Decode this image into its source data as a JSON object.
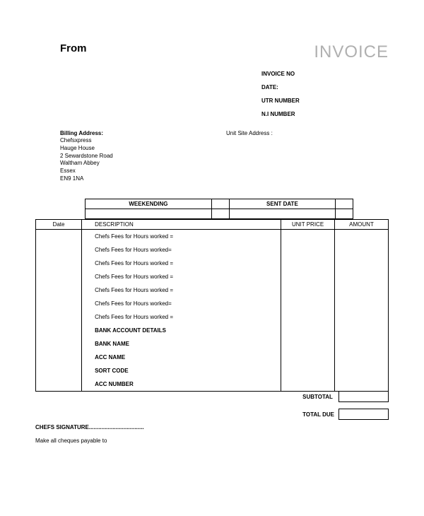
{
  "header": {
    "from_label": "From",
    "invoice_title": "INVOICE"
  },
  "meta": {
    "invoice_no_label": "INVOICE NO",
    "date_label": "DATE:",
    "utr_label": "UTR NUMBER",
    "ni_label": "N.I NUMBER"
  },
  "billing": {
    "title": "Billing Address:",
    "lines": [
      "Chefsxpress",
      "Hauge House",
      "2 Sewardstone Road",
      "Waltham Abbey",
      "Essex",
      "EN9 1NA"
    ]
  },
  "site": {
    "title": "Unit Site Address :"
  },
  "week": {
    "weekending": "WEEKENDING",
    "sent_date": "SENT DATE"
  },
  "table": {
    "headers": {
      "date": "Date",
      "desc": "DESCRIPTION",
      "price": "UNIT PRICE",
      "amount": "AMOUNT"
    },
    "rows": [
      {
        "desc": "Chefs Fees  for Hours worked =",
        "bold": false
      },
      {
        "desc": "Chefs Fees  for Hours worked=",
        "bold": false
      },
      {
        "desc": "Chefs Fees  for Hours worked =",
        "bold": false
      },
      {
        "desc": "Chefs Fees  for Hours worked =",
        "bold": false
      },
      {
        "desc": "Chefs Fees  for Hours worked =",
        "bold": false
      },
      {
        "desc": "Chefs Fees  for Hours worked=",
        "bold": false
      },
      {
        "desc": "Chefs Fees  for Hours worked =",
        "bold": false
      },
      {
        "desc": "BANK ACCOUNT DETAILS",
        "bold": true
      },
      {
        "desc": "BANK  NAME",
        "bold": true
      },
      {
        "desc": "ACC NAME",
        "bold": true
      },
      {
        "desc": "SORT CODE",
        "bold": true
      },
      {
        "desc": "ACC NUMBER",
        "bold": true
      }
    ]
  },
  "totals": {
    "subtotal_label": "SUBTOTAL",
    "total_due_label": "TOTAL DUE"
  },
  "footer": {
    "signature": "CHEFS SIGNATURE...................................",
    "payable": "Make all cheques payable to"
  },
  "colors": {
    "title_gray": "#b0b0b0",
    "border": "#000000",
    "bg": "#ffffff"
  }
}
